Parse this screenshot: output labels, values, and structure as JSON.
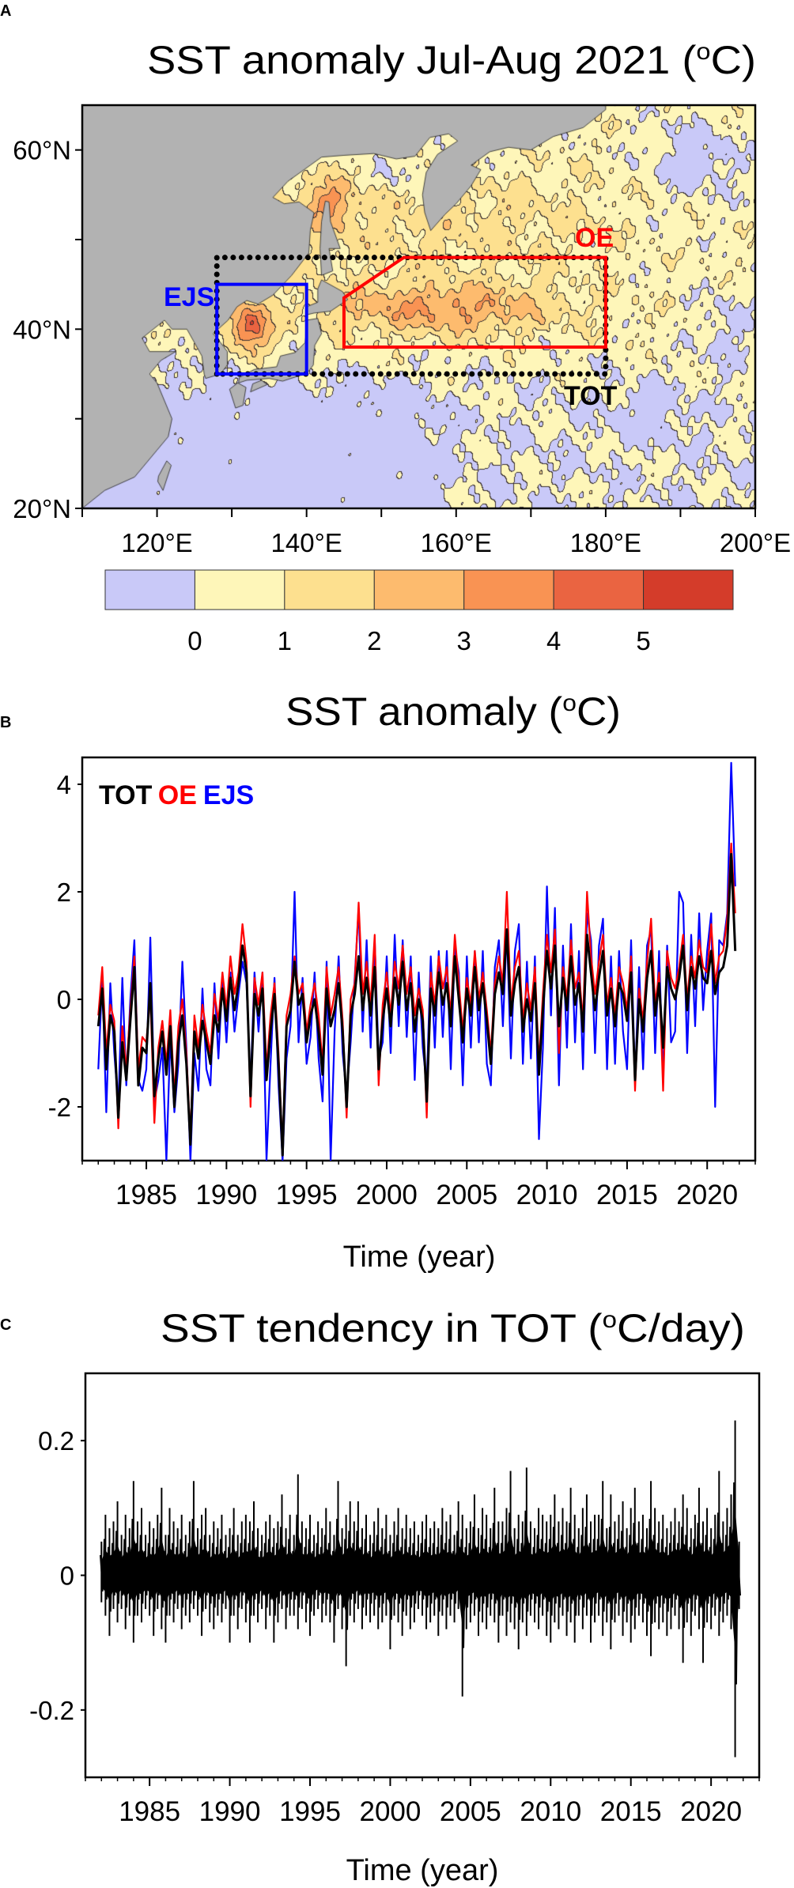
{
  "panels": {
    "a_label": "A",
    "b_label": "B",
    "c_label": "C"
  },
  "map": {
    "title": {
      "pre": "SST anomaly Jul-Aug 2021 (",
      "sup": "o",
      "post": "C)"
    },
    "extent": {
      "lon": [
        110,
        200
      ],
      "lat": [
        20,
        65
      ]
    },
    "lat_labels": [
      {
        "value": 60,
        "text": "60°N"
      },
      {
        "value": 40,
        "text": "40°N"
      },
      {
        "value": 20,
        "text": "20°N"
      }
    ],
    "lon_labels": [
      {
        "value": 120,
        "text": "120°E"
      },
      {
        "value": 140,
        "text": "140°E"
      },
      {
        "value": 160,
        "text": "160°E"
      },
      {
        "value": 180,
        "text": "180°E"
      },
      {
        "value": 200,
        "text": "200°E"
      }
    ],
    "land_color": "#b2b2b2",
    "colorbar": {
      "colors": [
        "#c9c9f8",
        "#fef6b9",
        "#fde08f",
        "#fdbb6e",
        "#f99353",
        "#ea6441",
        "#d43c2a"
      ],
      "tick_labels": [
        "0",
        "1",
        "2",
        "3",
        "4",
        "5"
      ]
    },
    "regions": [
      {
        "name": "TOT",
        "color": "#000000",
        "style": "dotted",
        "polygon": [
          [
            128,
            35
          ],
          [
            128,
            48
          ],
          [
            180,
            48
          ],
          [
            180,
            35
          ]
        ]
      },
      {
        "name": "EJS",
        "color": "#0000ff",
        "style": "solid",
        "polygon": [
          [
            128,
            35
          ],
          [
            128,
            45
          ],
          [
            140,
            45
          ],
          [
            140,
            35
          ]
        ]
      },
      {
        "name": "OE",
        "color": "#ff0000",
        "style": "solid",
        "polygon": [
          [
            145,
            38
          ],
          [
            145,
            43.5
          ],
          [
            153,
            48
          ],
          [
            180,
            48
          ],
          [
            180,
            38
          ]
        ]
      }
    ]
  },
  "chart_data": [
    {
      "type": "line",
      "title": {
        "pre": "SST anomaly (",
        "sup": "o",
        "post": "C)"
      },
      "xlabel": "Time (year)",
      "ylabel": "",
      "xlim": [
        1981,
        2023
      ],
      "ylim": [
        -3,
        4.5
      ],
      "yticks": [
        {
          "value": 4,
          "text": "4"
        },
        {
          "value": 2,
          "text": "2"
        },
        {
          "value": 0,
          "text": "0"
        },
        {
          "value": -2,
          "text": "-2"
        }
      ],
      "xticks": [
        {
          "value": 1985,
          "text": "1985"
        },
        {
          "value": 1990,
          "text": "1990"
        },
        {
          "value": 1995,
          "text": "1995"
        },
        {
          "value": 2000,
          "text": "2000"
        },
        {
          "value": 2005,
          "text": "2005"
        },
        {
          "value": 2010,
          "text": "2010"
        },
        {
          "value": 2015,
          "text": "2015"
        },
        {
          "value": 2020,
          "text": "2020"
        }
      ],
      "grid": false,
      "legend": "top-left",
      "time_start": 1982.0,
      "time_step": 0.25,
      "series": [
        {
          "name": "TOT",
          "color": "#000000",
          "values": [
            -0.5,
            0.2,
            -1.3,
            -0.3,
            -0.6,
            -2.2,
            -0.8,
            -1.5,
            -0.4,
            0.6,
            -1.6,
            -0.9,
            -1.0,
            0.3,
            -1.8,
            -1.1,
            -0.6,
            -1.4,
            -0.5,
            -2.0,
            -0.8,
            -0.3,
            -1.2,
            -2.7,
            -0.6,
            -1.1,
            -0.4,
            -0.8,
            -1.2,
            -0.3,
            -0.6,
            0.2,
            -0.4,
            0.4,
            -0.2,
            0.3,
            1.0,
            0.5,
            -1.8,
            0.1,
            -0.3,
            0.2,
            -1.5,
            -0.6,
            0.1,
            -1.2,
            -2.9,
            -0.5,
            -0.2,
            0.7,
            -0.1,
            0.1,
            -0.8,
            -0.3,
            0.0,
            -0.6,
            -1.4,
            0.2,
            -0.5,
            -0.2,
            0.3,
            -0.6,
            -2.0,
            -0.3,
            0.1,
            0.8,
            -0.2,
            0.4,
            -0.3,
            0.6,
            -1.3,
            -0.4,
            0.2,
            -0.5,
            0.4,
            -0.1,
            0.7,
            -0.2,
            0.3,
            -0.6,
            0.0,
            -0.4,
            -1.9,
            0.2,
            -0.3,
            0.5,
            -0.1,
            0.3,
            -0.5,
            0.8,
            0.0,
            -0.8,
            0.2,
            -0.3,
            0.6,
            -0.2,
            0.3,
            -0.4,
            -1.2,
            0.1,
            0.5,
            0.1,
            1.3,
            -0.3,
            0.3,
            0.6,
            -0.6,
            0.0,
            -0.4,
            0.3,
            -1.4,
            -0.2,
            0.9,
            0.2,
            1.0,
            -0.5,
            0.4,
            -0.2,
            0.8,
            -0.1,
            0.3,
            -0.6,
            1.2,
            0.5,
            -0.2,
            0.4,
            0.9,
            -0.3,
            0.2,
            -0.5,
            0.3,
            0.1,
            -0.4,
            0.5,
            -1.5,
            0.0,
            -0.6,
            0.4,
            0.9,
            -0.3,
            0.3,
            -0.9,
            0.6,
            0.2,
            0.0,
            0.4,
            1.0,
            -0.2,
            0.6,
            0.2,
            0.8,
            0.4,
            0.3,
            0.9,
            0.1,
            0.5,
            0.6,
            1.0,
            2.7,
            0.9
          ]
        },
        {
          "name": "OE",
          "color": "#ff0000",
          "values": [
            -0.3,
            0.6,
            -1.0,
            -0.1,
            -0.4,
            -2.4,
            -0.5,
            -1.3,
            -0.2,
            0.8,
            -1.3,
            -0.7,
            -0.8,
            0.1,
            -2.3,
            -0.9,
            -0.4,
            -1.2,
            -0.2,
            -1.8,
            -0.5,
            0.0,
            -1.0,
            -2.6,
            -0.3,
            -0.9,
            -0.1,
            -0.6,
            -1.0,
            0.1,
            -0.4,
            0.5,
            -0.2,
            0.8,
            0.1,
            0.5,
            1.4,
            0.7,
            -2.0,
            0.4,
            -0.1,
            0.5,
            -1.3,
            -0.3,
            0.3,
            -1.0,
            -2.8,
            -0.3,
            0.1,
            0.8,
            0.1,
            0.3,
            -0.6,
            -0.1,
            0.3,
            -0.3,
            -1.2,
            0.6,
            -0.3,
            0.1,
            0.6,
            -0.4,
            -2.2,
            0.0,
            0.3,
            1.8,
            0.1,
            0.7,
            -0.1,
            1.2,
            -1.6,
            -0.1,
            0.5,
            -0.3,
            0.7,
            0.2,
            1.0,
            0.1,
            0.6,
            -0.3,
            0.2,
            -0.2,
            -2.2,
            0.5,
            -0.1,
            0.8,
            0.2,
            0.6,
            -0.3,
            1.2,
            0.3,
            -0.6,
            0.4,
            -0.1,
            0.9,
            0.0,
            0.5,
            -0.2,
            -1.0,
            0.3,
            0.8,
            0.3,
            2.0,
            -0.1,
            0.6,
            0.9,
            -0.4,
            0.3,
            -0.2,
            0.6,
            -1.2,
            0.1,
            1.2,
            0.5,
            1.3,
            -1.0,
            0.6,
            0.0,
            1.1,
            0.2,
            0.5,
            -0.4,
            2.0,
            0.8,
            0.1,
            0.7,
            1.2,
            -0.1,
            0.4,
            -0.3,
            0.6,
            0.3,
            -0.2,
            0.8,
            -1.7,
            0.2,
            -0.4,
            0.7,
            1.5,
            -0.1,
            0.5,
            -1.7,
            0.9,
            0.4,
            0.2,
            0.6,
            1.2,
            0.0,
            0.8,
            0.4,
            1.1,
            0.6,
            0.5,
            1.4,
            0.3,
            0.8,
            0.9,
            1.5,
            2.9,
            1.6
          ]
        },
        {
          "name": "EJS",
          "color": "#0000ff",
          "values": [
            -1.3,
            0.4,
            -2.1,
            0.3,
            -1.0,
            -2.0,
            0.4,
            -1.6,
            0.0,
            1.1,
            -1.5,
            -1.7,
            -1.3,
            1.15,
            -1.9,
            -1.5,
            -0.9,
            -3.0,
            -0.7,
            -2.1,
            -1.2,
            0.7,
            -0.9,
            -3.0,
            -1.0,
            -1.7,
            0.2,
            -1.3,
            -1.6,
            0.3,
            -1.1,
            0.4,
            -0.8,
            0.5,
            -0.6,
            0.1,
            0.7,
            0.3,
            -1.6,
            0.5,
            -0.6,
            0.5,
            -3.0,
            -1.2,
            0.4,
            -1.6,
            -3.0,
            -1.1,
            -0.5,
            2.0,
            -0.8,
            0.4,
            -1.2,
            -0.7,
            0.5,
            -1.1,
            -1.9,
            0.7,
            -3.0,
            -0.6,
            0.8,
            -1.0,
            -1.8,
            -0.8,
            0.4,
            1.7,
            -0.6,
            1.1,
            -0.9,
            1.1,
            -1.1,
            -0.8,
            0.8,
            -1.0,
            1.2,
            -0.5,
            1.1,
            -0.7,
            0.8,
            -1.5,
            0.5,
            -0.9,
            -1.6,
            0.8,
            -0.9,
            0.9,
            -0.7,
            0.9,
            -1.3,
            1.0,
            0.5,
            -1.6,
            0.8,
            -0.9,
            0.9,
            -0.8,
            0.9,
            -1.2,
            -1.6,
            0.6,
            1.1,
            -0.5,
            1.3,
            -1.1,
            0.9,
            1.4,
            -1.2,
            0.7,
            -1.1,
            0.8,
            -2.6,
            -0.9,
            2.1,
            -0.3,
            1.7,
            -1.6,
            1.0,
            -0.9,
            1.4,
            -0.8,
            0.9,
            -1.3,
            1.6,
            1.1,
            -1.0,
            1.0,
            1.5,
            -1.3,
            0.8,
            -1.2,
            0.9,
            -0.6,
            -1.3,
            1.1,
            -1.5,
            0.6,
            -1.3,
            1.0,
            1.3,
            -1.0,
            0.9,
            -1.5,
            1.0,
            -0.8,
            -0.6,
            2.0,
            1.8,
            -1.0,
            1.2,
            -0.5,
            1.6,
            -0.2,
            0.9,
            1.6,
            -2.0,
            1.1,
            1.0,
            1.6,
            4.4,
            2.1
          ]
        }
      ]
    },
    {
      "type": "line",
      "title": {
        "pre": "SST tendency in TOT (",
        "sup": "o",
        "post": "C/day)"
      },
      "xlabel": "Time (year)",
      "ylabel": "",
      "xlim": [
        1981,
        2023
      ],
      "ylim": [
        -0.3,
        0.3
      ],
      "yticks": [
        {
          "value": 0.2,
          "text": "0.2"
        },
        {
          "value": 0,
          "text": "0"
        },
        {
          "value": -0.2,
          "text": "-0.2"
        }
      ],
      "xticks": [
        {
          "value": 1985,
          "text": "1985"
        },
        {
          "value": 1990,
          "text": "1990"
        },
        {
          "value": 1995,
          "text": "1995"
        },
        {
          "value": 2000,
          "text": "2000"
        },
        {
          "value": 2005,
          "text": "2005"
        },
        {
          "value": 2010,
          "text": "2010"
        },
        {
          "value": 2015,
          "text": "2015"
        },
        {
          "value": 2020,
          "text": "2020"
        }
      ],
      "grid": false,
      "time_start": 1982.0,
      "time_step": 0.25,
      "color": "#000000",
      "max_values": [
        0.05,
        0.09,
        0.07,
        0.08,
        0.11,
        0.06,
        0.09,
        0.07,
        0.14,
        0.08,
        0.1,
        0.06,
        0.08,
        0.07,
        0.09,
        0.13,
        0.06,
        0.1,
        0.08,
        0.07,
        0.09,
        0.06,
        0.08,
        0.14,
        0.07,
        0.09,
        0.1,
        0.06,
        0.08,
        0.07,
        0.09,
        0.06,
        0.07,
        0.1,
        0.06,
        0.08,
        0.09,
        0.08,
        0.11,
        0.07,
        0.06,
        0.08,
        0.09,
        0.07,
        0.08,
        0.12,
        0.07,
        0.09,
        0.06,
        0.15,
        0.08,
        0.07,
        0.09,
        0.06,
        0.08,
        0.07,
        0.1,
        0.08,
        0.06,
        0.14,
        0.07,
        0.09,
        0.11,
        0.08,
        0.11,
        0.07,
        0.09,
        0.06,
        0.08,
        0.1,
        0.07,
        0.09,
        0.06,
        0.08,
        0.1,
        0.07,
        0.09,
        0.07,
        0.08,
        0.06,
        0.08,
        0.09,
        0.07,
        0.08,
        0.07,
        0.1,
        0.08,
        0.09,
        0.06,
        0.11,
        0.09,
        0.07,
        0.08,
        0.12,
        0.07,
        0.1,
        0.09,
        0.07,
        0.13,
        0.08,
        0.08,
        0.1,
        0.155,
        0.07,
        0.09,
        0.08,
        0.16,
        0.08,
        0.07,
        0.1,
        0.09,
        0.08,
        0.09,
        0.12,
        0.08,
        0.1,
        0.08,
        0.13,
        0.09,
        0.07,
        0.1,
        0.12,
        0.08,
        0.09,
        0.09,
        0.14,
        0.07,
        0.12,
        0.08,
        0.09,
        0.11,
        0.07,
        0.1,
        0.13,
        0.08,
        0.09,
        0.07,
        0.14,
        0.1,
        0.08,
        0.09,
        0.07,
        0.08,
        0.1,
        0.08,
        0.12,
        0.1,
        0.07,
        0.09,
        0.13,
        0.08,
        0.1,
        0.07,
        0.09,
        0.155,
        0.08,
        0.1,
        0.12,
        0.23,
        0.05
      ],
      "min_values": [
        -0.04,
        -0.06,
        -0.09,
        -0.05,
        -0.07,
        -0.05,
        -0.08,
        -0.06,
        -0.1,
        -0.06,
        -0.07,
        -0.05,
        -0.06,
        -0.09,
        -0.05,
        -0.08,
        -0.1,
        -0.06,
        -0.07,
        -0.05,
        -0.08,
        -0.06,
        -0.07,
        -0.05,
        -0.06,
        -0.09,
        -0.05,
        -0.07,
        -0.08,
        -0.06,
        -0.07,
        -0.05,
        -0.1,
        -0.06,
        -0.08,
        -0.05,
        -0.07,
        -0.1,
        -0.06,
        -0.07,
        -0.05,
        -0.08,
        -0.06,
        -0.1,
        -0.07,
        -0.05,
        -0.08,
        -0.06,
        -0.06,
        -0.08,
        -0.05,
        -0.07,
        -0.09,
        -0.06,
        -0.05,
        -0.07,
        -0.06,
        -0.07,
        -0.1,
        -0.05,
        -0.08,
        -0.135,
        -0.06,
        -0.07,
        -0.05,
        -0.08,
        -0.06,
        -0.07,
        -0.06,
        -0.08,
        -0.07,
        -0.06,
        -0.11,
        -0.06,
        -0.07,
        -0.09,
        -0.06,
        -0.08,
        -0.07,
        -0.05,
        -0.06,
        -0.08,
        -0.07,
        -0.06,
        -0.09,
        -0.06,
        -0.08,
        -0.06,
        -0.07,
        -0.05,
        -0.18,
        -0.08,
        -0.07,
        -0.06,
        -0.09,
        -0.07,
        -0.08,
        -0.06,
        -0.07,
        -0.1,
        -0.06,
        -0.09,
        -0.07,
        -0.08,
        -0.11,
        -0.07,
        -0.09,
        -0.06,
        -0.07,
        -0.08,
        -0.06,
        -0.09,
        -0.1,
        -0.07,
        -0.08,
        -0.06,
        -0.09,
        -0.07,
        -0.1,
        -0.06,
        -0.08,
        -0.06,
        -0.1,
        -0.07,
        -0.06,
        -0.09,
        -0.07,
        -0.11,
        -0.07,
        -0.06,
        -0.09,
        -0.07,
        -0.1,
        -0.08,
        -0.06,
        -0.07,
        -0.09,
        -0.12,
        -0.07,
        -0.08,
        -0.07,
        -0.09,
        -0.08,
        -0.06,
        -0.08,
        -0.13,
        -0.07,
        -0.09,
        -0.06,
        -0.08,
        -0.13,
        -0.07,
        -0.08,
        -0.06,
        -0.09,
        -0.07,
        -0.06,
        -0.08,
        -0.27,
        -0.05
      ]
    }
  ]
}
